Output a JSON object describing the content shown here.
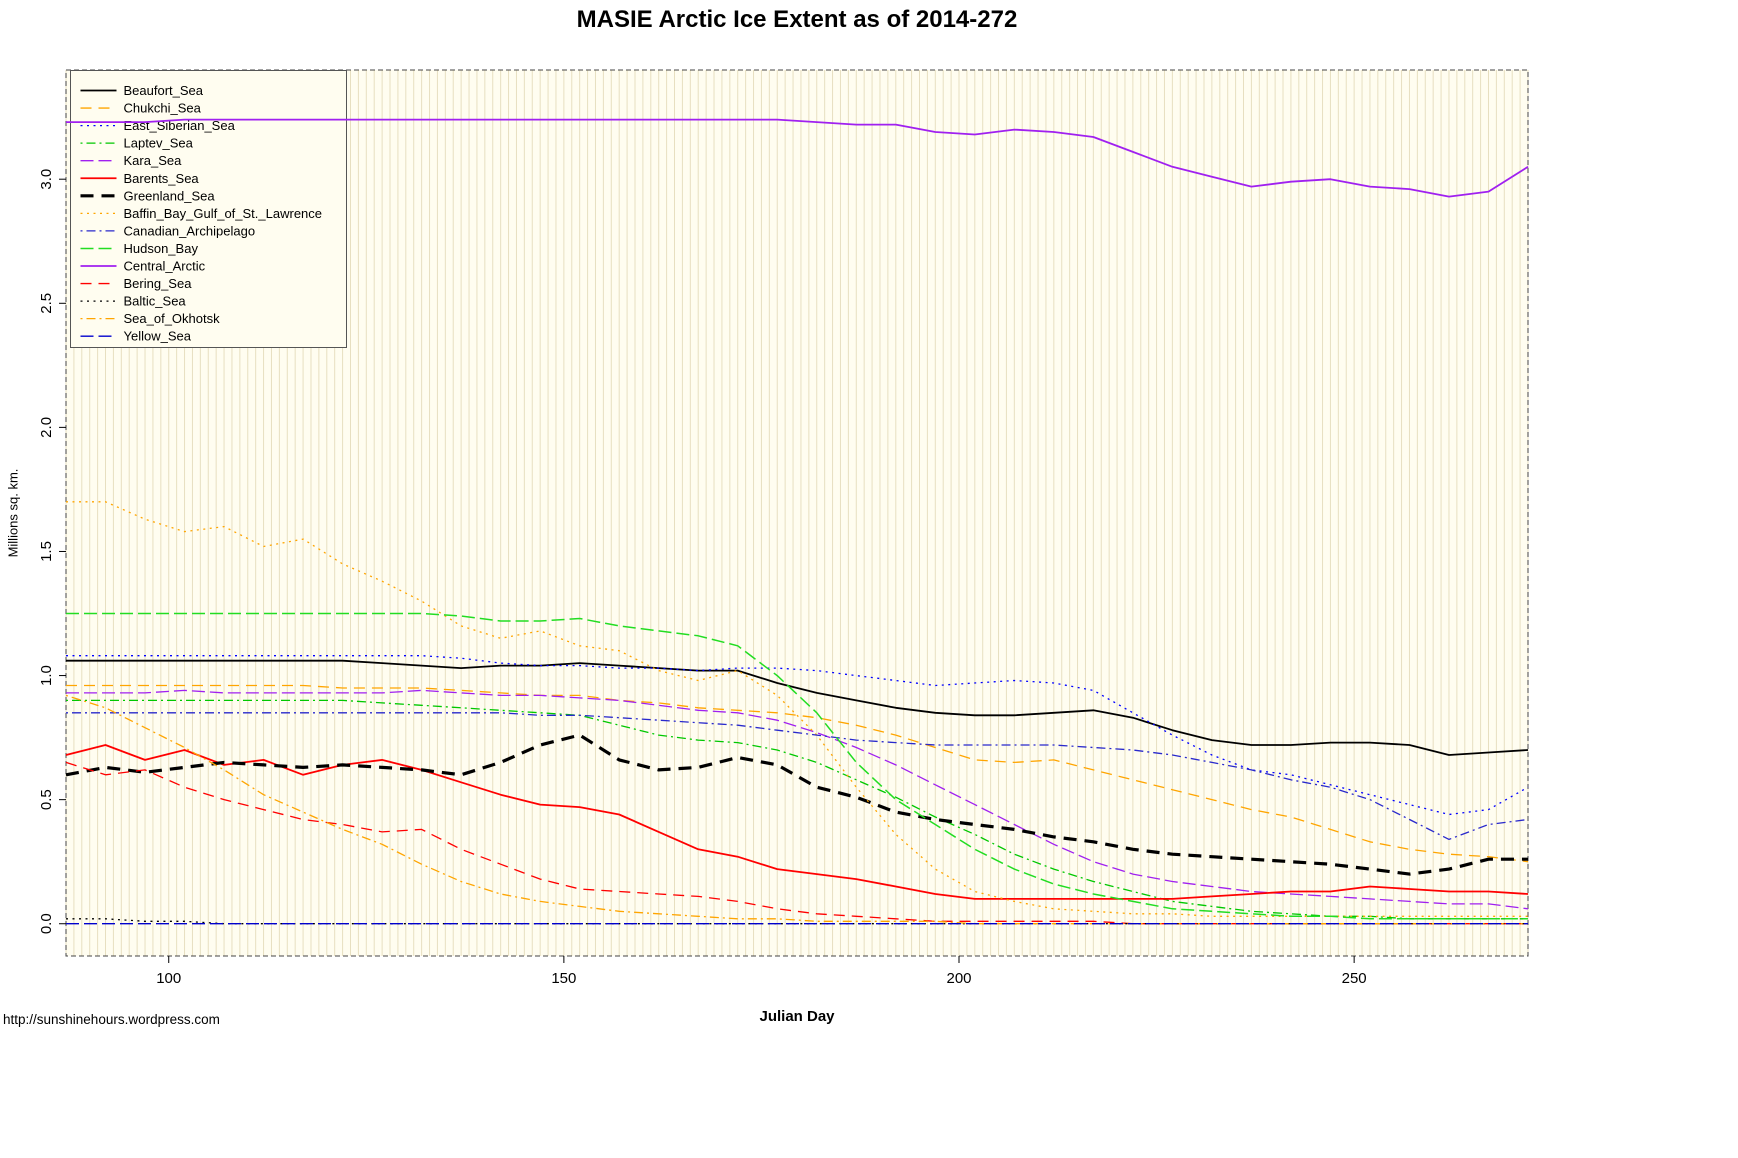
{
  "page": {
    "footer_url": "http://sunshinehours.wordpress.com"
  },
  "chart_data": {
    "type": "line",
    "title": "MASIE Arctic Ice Extent as of 2014-272",
    "xlabel": "Julian Day",
    "ylabel": "Millions sq. km.",
    "xlim": [
      87,
      272
    ],
    "ylim": [
      -0.13,
      3.44
    ],
    "xticks": [
      100,
      150,
      200,
      250
    ],
    "yticks": [
      0.0,
      0.5,
      1.0,
      1.5,
      2.0,
      2.5,
      3.0
    ],
    "grid": "vertical-daily",
    "legend_position": "top-left",
    "background": "#fffdf0",
    "grid_color": "#e7dfc0",
    "border_color": "#444444",
    "x": [
      87,
      92,
      97,
      102,
      107,
      112,
      117,
      122,
      127,
      132,
      137,
      142,
      147,
      152,
      157,
      162,
      167,
      172,
      177,
      182,
      187,
      192,
      197,
      202,
      207,
      212,
      217,
      222,
      227,
      232,
      237,
      242,
      247,
      252,
      257,
      262,
      267,
      272
    ],
    "series": [
      {
        "name": "Beaufort_Sea",
        "color": "#000000",
        "linetype": "solid",
        "width": 1.8,
        "values": [
          1.06,
          1.06,
          1.06,
          1.06,
          1.06,
          1.06,
          1.06,
          1.06,
          1.05,
          1.04,
          1.03,
          1.04,
          1.04,
          1.05,
          1.04,
          1.03,
          1.02,
          1.02,
          0.97,
          0.93,
          0.9,
          0.87,
          0.85,
          0.84,
          0.84,
          0.85,
          0.86,
          0.83,
          0.78,
          0.74,
          0.72,
          0.72,
          0.73,
          0.73,
          0.72,
          0.68,
          0.69,
          0.7
        ]
      },
      {
        "name": "Chukchi_Sea",
        "color": "#FFA500",
        "linetype": "dashed",
        "width": 1.3,
        "values": [
          0.96,
          0.96,
          0.96,
          0.96,
          0.96,
          0.96,
          0.96,
          0.95,
          0.95,
          0.95,
          0.94,
          0.93,
          0.92,
          0.92,
          0.9,
          0.89,
          0.87,
          0.86,
          0.85,
          0.83,
          0.8,
          0.76,
          0.71,
          0.66,
          0.65,
          0.66,
          0.62,
          0.58,
          0.54,
          0.5,
          0.46,
          0.43,
          0.38,
          0.33,
          0.3,
          0.28,
          0.27,
          0.25
        ]
      },
      {
        "name": "East_Siberian_Sea",
        "color": "#0000FF",
        "linetype": "dotted",
        "width": 1.3,
        "values": [
          1.08,
          1.08,
          1.08,
          1.08,
          1.08,
          1.08,
          1.08,
          1.08,
          1.08,
          1.08,
          1.07,
          1.05,
          1.04,
          1.04,
          1.03,
          1.03,
          1.02,
          1.03,
          1.03,
          1.02,
          1.0,
          0.98,
          0.96,
          0.97,
          0.98,
          0.97,
          0.94,
          0.85,
          0.76,
          0.68,
          0.62,
          0.6,
          0.56,
          0.52,
          0.48,
          0.44,
          0.46,
          0.55
        ]
      },
      {
        "name": "Laptev_Sea",
        "color": "#00C800",
        "linetype": "dashdot",
        "width": 1.3,
        "values": [
          0.9,
          0.9,
          0.9,
          0.9,
          0.9,
          0.9,
          0.9,
          0.9,
          0.89,
          0.88,
          0.87,
          0.86,
          0.85,
          0.84,
          0.8,
          0.76,
          0.74,
          0.73,
          0.7,
          0.65,
          0.58,
          0.51,
          0.43,
          0.36,
          0.28,
          0.22,
          0.17,
          0.13,
          0.09,
          0.07,
          0.05,
          0.04,
          0.03,
          0.03,
          0.02,
          0.02,
          0.02,
          0.02
        ]
      },
      {
        "name": "Kara_Sea",
        "color": "#A020F0",
        "linetype": "longdash",
        "width": 1.3,
        "values": [
          0.93,
          0.93,
          0.93,
          0.94,
          0.93,
          0.93,
          0.93,
          0.93,
          0.93,
          0.94,
          0.93,
          0.92,
          0.92,
          0.91,
          0.9,
          0.88,
          0.86,
          0.85,
          0.82,
          0.77,
          0.71,
          0.64,
          0.56,
          0.48,
          0.4,
          0.32,
          0.25,
          0.2,
          0.17,
          0.15,
          0.13,
          0.12,
          0.11,
          0.1,
          0.09,
          0.08,
          0.08,
          0.06
        ]
      },
      {
        "name": "Barents_Sea",
        "color": "#FF0000",
        "linetype": "solid",
        "width": 1.8,
        "values": [
          0.68,
          0.72,
          0.66,
          0.7,
          0.64,
          0.66,
          0.6,
          0.64,
          0.66,
          0.62,
          0.57,
          0.52,
          0.48,
          0.47,
          0.44,
          0.37,
          0.3,
          0.27,
          0.22,
          0.2,
          0.18,
          0.15,
          0.12,
          0.1,
          0.1,
          0.1,
          0.1,
          0.1,
          0.1,
          0.11,
          0.12,
          0.13,
          0.13,
          0.15,
          0.14,
          0.13,
          0.13,
          0.12
        ]
      },
      {
        "name": "Greenland_Sea",
        "color": "#000000",
        "linetype": "dashed",
        "width": 3.2,
        "values": [
          0.6,
          0.63,
          0.61,
          0.63,
          0.65,
          0.64,
          0.63,
          0.64,
          0.63,
          0.62,
          0.6,
          0.65,
          0.72,
          0.76,
          0.66,
          0.62,
          0.63,
          0.67,
          0.64,
          0.55,
          0.51,
          0.45,
          0.42,
          0.4,
          0.38,
          0.35,
          0.33,
          0.3,
          0.28,
          0.27,
          0.26,
          0.25,
          0.24,
          0.22,
          0.2,
          0.22,
          0.26,
          0.26
        ]
      },
      {
        "name": "Baffin_Bay_Gulf_of_St._Lawrence",
        "color": "#FFA500",
        "linetype": "dotted",
        "width": 1.3,
        "values": [
          1.7,
          1.7,
          1.63,
          1.58,
          1.6,
          1.52,
          1.55,
          1.45,
          1.38,
          1.3,
          1.2,
          1.15,
          1.18,
          1.12,
          1.1,
          1.02,
          0.98,
          1.02,
          0.92,
          0.76,
          0.55,
          0.36,
          0.22,
          0.13,
          0.09,
          0.06,
          0.05,
          0.04,
          0.04,
          0.03,
          0.03,
          0.03,
          0.03,
          0.03,
          0.03,
          0.03,
          0.03,
          0.03
        ]
      },
      {
        "name": "Canadian_Archipelago",
        "color": "#2929CC",
        "linetype": "dashdot",
        "width": 1.3,
        "values": [
          0.85,
          0.85,
          0.85,
          0.85,
          0.85,
          0.85,
          0.85,
          0.85,
          0.85,
          0.85,
          0.85,
          0.85,
          0.84,
          0.84,
          0.83,
          0.82,
          0.81,
          0.8,
          0.78,
          0.76,
          0.74,
          0.73,
          0.72,
          0.72,
          0.72,
          0.72,
          0.71,
          0.7,
          0.68,
          0.65,
          0.62,
          0.58,
          0.55,
          0.5,
          0.42,
          0.34,
          0.4,
          0.42
        ]
      },
      {
        "name": "Hudson_Bay",
        "color": "#22DD22",
        "linetype": "longdash",
        "width": 1.5,
        "values": [
          1.25,
          1.25,
          1.25,
          1.25,
          1.25,
          1.25,
          1.25,
          1.25,
          1.25,
          1.25,
          1.24,
          1.22,
          1.22,
          1.23,
          1.2,
          1.18,
          1.16,
          1.12,
          1.0,
          0.85,
          0.65,
          0.5,
          0.4,
          0.3,
          0.22,
          0.16,
          0.12,
          0.09,
          0.06,
          0.05,
          0.04,
          0.03,
          0.03,
          0.02,
          0.02,
          0.02,
          0.02,
          0.02
        ]
      },
      {
        "name": "Central_Arctic",
        "color": "#A020F0",
        "linetype": "solid",
        "width": 1.8,
        "values": [
          3.23,
          3.23,
          3.23,
          3.24,
          3.24,
          3.24,
          3.24,
          3.24,
          3.24,
          3.24,
          3.24,
          3.24,
          3.24,
          3.24,
          3.24,
          3.24,
          3.24,
          3.24,
          3.24,
          3.23,
          3.22,
          3.22,
          3.19,
          3.18,
          3.2,
          3.19,
          3.17,
          3.11,
          3.05,
          3.01,
          2.97,
          2.99,
          3.0,
          2.97,
          2.96,
          2.93,
          2.95,
          3.05
        ]
      },
      {
        "name": "Bering_Sea",
        "color": "#FF0000",
        "linetype": "dashed",
        "width": 1.3,
        "values": [
          0.65,
          0.6,
          0.62,
          0.55,
          0.5,
          0.46,
          0.42,
          0.4,
          0.37,
          0.38,
          0.3,
          0.24,
          0.18,
          0.14,
          0.13,
          0.12,
          0.11,
          0.09,
          0.06,
          0.04,
          0.03,
          0.02,
          0.01,
          0.01,
          0.01,
          0.01,
          0.01,
          0,
          0,
          0,
          0,
          0,
          0,
          0,
          0,
          0,
          0,
          0
        ]
      },
      {
        "name": "Baltic_Sea",
        "color": "#000000",
        "linetype": "dotted",
        "width": 1.3,
        "values": [
          0.02,
          0.02,
          0.01,
          0.01,
          0,
          0,
          0,
          0,
          0,
          0,
          0,
          0,
          0,
          0,
          0,
          0,
          0,
          0,
          0,
          0,
          0,
          0,
          0,
          0,
          0,
          0,
          0,
          0,
          0,
          0,
          0,
          0,
          0,
          0,
          0,
          0,
          0,
          0
        ]
      },
      {
        "name": "Sea_of_Okhotsk",
        "color": "#FFA500",
        "linetype": "dashdot",
        "width": 1.3,
        "values": [
          0.92,
          0.87,
          0.79,
          0.71,
          0.62,
          0.52,
          0.45,
          0.38,
          0.32,
          0.24,
          0.17,
          0.12,
          0.09,
          0.07,
          0.05,
          0.04,
          0.03,
          0.02,
          0.02,
          0.01,
          0.01,
          0.01,
          0.01,
          0,
          0,
          0,
          0,
          0,
          0,
          0,
          0,
          0,
          0,
          0,
          0,
          0,
          0,
          0
        ]
      },
      {
        "name": "Yellow_Sea",
        "color": "#0000CD",
        "linetype": "longdash",
        "width": 1.3,
        "values": [
          0,
          0,
          0,
          0,
          0,
          0,
          0,
          0,
          0,
          0,
          0,
          0,
          0,
          0,
          0,
          0,
          0,
          0,
          0,
          0,
          0,
          0,
          0,
          0,
          0,
          0,
          0,
          0,
          0,
          0,
          0,
          0,
          0,
          0,
          0,
          0,
          0,
          0
        ]
      }
    ]
  }
}
